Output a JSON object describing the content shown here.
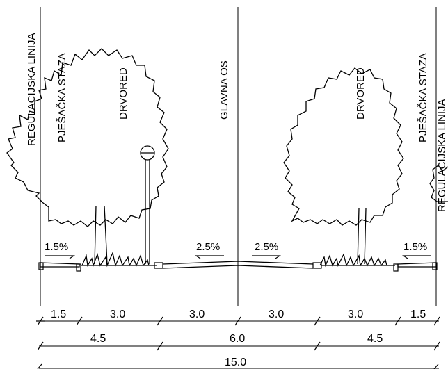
{
  "labels": {
    "left_regulation_line": "REGULACIJSKA LINIJA",
    "left_sidewalk": "PJEŠAČKA STAZA",
    "left_tree_row": "DRVORED",
    "main_axis": "GLAVNA OS",
    "right_tree_row": "DRVORED",
    "right_sidewalk": "PJEŠAČKA STAZA",
    "right_regulation_line": "REGULACIJSKA LINIJA"
  },
  "slopes": {
    "left_sidewalk": "1.5%",
    "left_road": "2.5%",
    "right_road": "2.5%",
    "right_sidewalk": "1.5%"
  },
  "dimensions": {
    "row1": [
      "1.5",
      "3.0",
      "3.0",
      "3.0",
      "3.0",
      "1.5"
    ],
    "row2": [
      "4.5",
      "6.0",
      "4.5"
    ],
    "row3": [
      "15.0"
    ]
  }
}
